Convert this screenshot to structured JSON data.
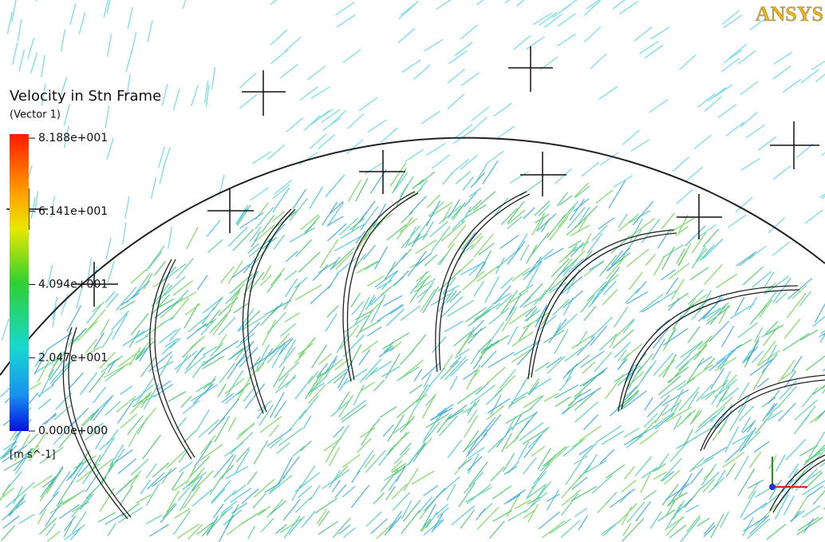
{
  "logo": "ANSYS",
  "legend": {
    "title": "Velocity in Stn Frame",
    "subtitle": "(Vector 1)",
    "ticks": [
      "8.188e+001",
      "6.141e+001",
      "4.094e+001",
      "2.047e+001",
      "0.000e+000"
    ],
    "unit": "[m s^-1]"
  }
}
